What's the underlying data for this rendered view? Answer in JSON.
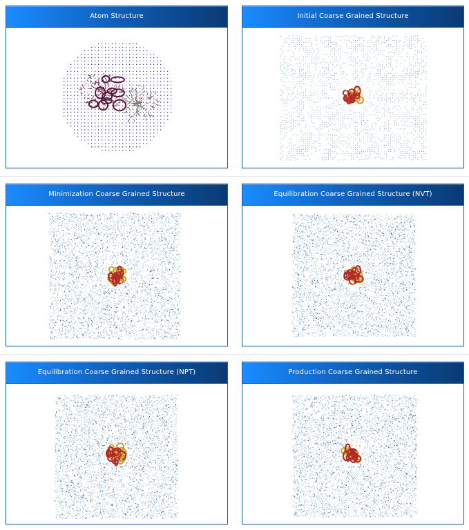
{
  "panels": [
    {
      "id": "atom",
      "title": "Atom Structure",
      "kind": "atom"
    },
    {
      "id": "initial",
      "title": "Initial Coarse Grained Structure",
      "kind": "initial"
    },
    {
      "id": "minimization",
      "title": "Minimization Coarse Grained Structure",
      "kind": "box"
    },
    {
      "id": "nvt",
      "title": "Equilibration Coarse Grained Structure (NVT)",
      "kind": "box"
    },
    {
      "id": "npt",
      "title": "Equilibration Coarse Grained Structure (NPT)",
      "kind": "box"
    },
    {
      "id": "production",
      "title": "Production Coarse Grained Structure",
      "kind": "box"
    }
  ],
  "colors": {
    "header_start": "#1a8cff",
    "header_end": "#093a75",
    "panel_border": "#1b5aa8",
    "solvent_dot": "#4a7fb0",
    "protein_red": "#b22a2a",
    "protein_gold": "#c8a020",
    "atom_grid_dot": "#3a3f9a",
    "atom_grid_pink": "#e07a9a"
  }
}
